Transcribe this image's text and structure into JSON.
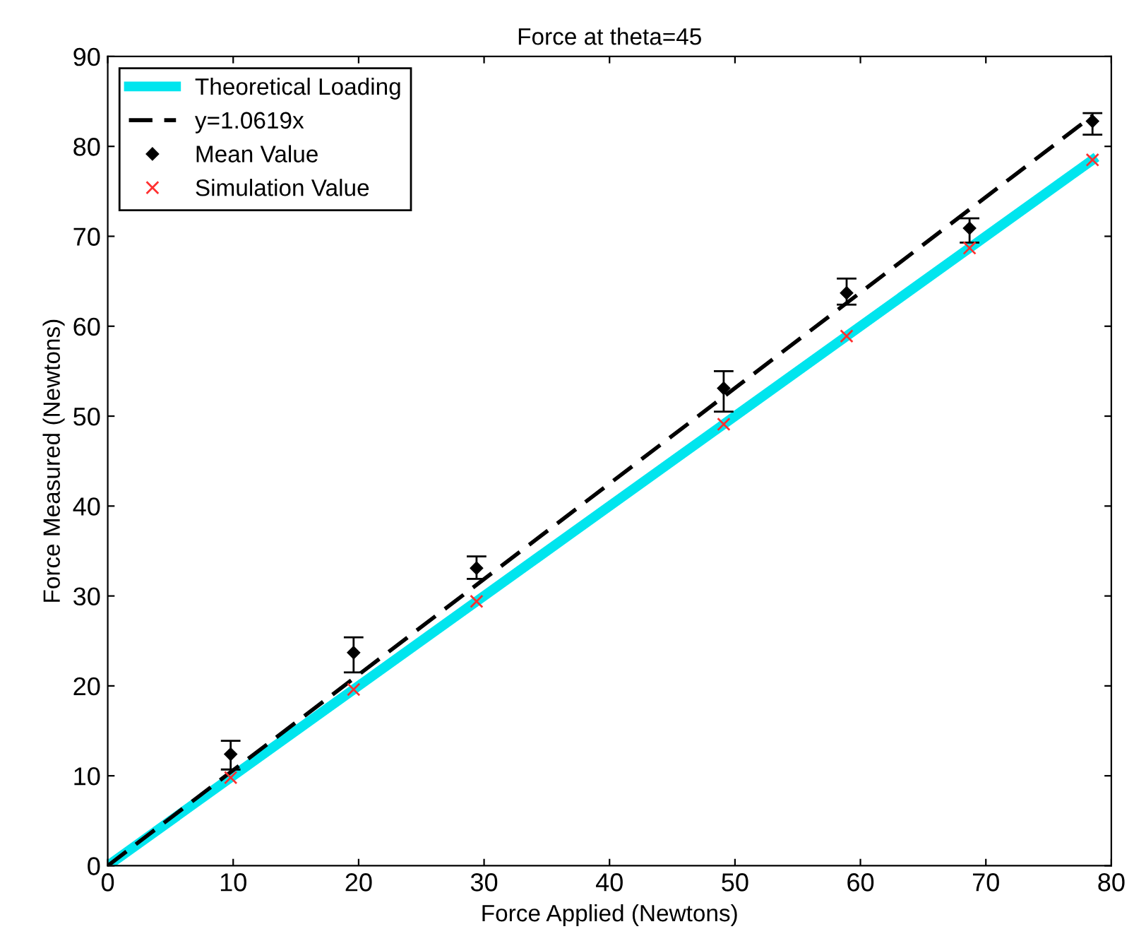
{
  "chart_data": {
    "type": "line",
    "title": "Force at theta=45",
    "xlabel": "Force Applied (Newtons)",
    "ylabel": "Force Measured (Newtons)",
    "xlim": [
      0,
      80
    ],
    "ylim": [
      0,
      90
    ],
    "xticks": [
      0,
      10,
      20,
      30,
      40,
      50,
      60,
      70,
      80
    ],
    "yticks": [
      0,
      10,
      20,
      30,
      40,
      50,
      60,
      70,
      80,
      90
    ],
    "grid": false,
    "legend": "top left",
    "series": [
      {
        "name": "Theoretical Loading",
        "color": "#00e5ee",
        "line_style": "solid",
        "marker": "none",
        "x": [
          0,
          78.5
        ],
        "values": [
          0,
          78.5
        ]
      },
      {
        "name": "y=1.0619x",
        "color": "#000000",
        "line_style": "dashed",
        "marker": "none",
        "x": [
          0,
          78.5
        ],
        "values": [
          0,
          83.4
        ]
      },
      {
        "name": "Mean Value",
        "type": "scatter",
        "color": "#000000",
        "marker": "diamond",
        "x": [
          9.8,
          19.6,
          29.4,
          49.1,
          58.9,
          68.7,
          78.5
        ],
        "values": [
          12.4,
          23.7,
          33.1,
          53.1,
          63.7,
          70.9,
          82.8
        ],
        "errors": [
          [
            10.7,
            13.9
          ],
          [
            21.5,
            25.4
          ],
          [
            31.9,
            34.4
          ],
          [
            50.5,
            55.0
          ],
          [
            62.4,
            65.3
          ],
          [
            69.3,
            72.0
          ],
          [
            81.3,
            83.7
          ]
        ]
      },
      {
        "name": "Simulation Value",
        "type": "scatter",
        "color": "#ff3030",
        "marker": "cross",
        "x": [
          9.8,
          19.6,
          29.4,
          49.1,
          58.9,
          68.7,
          78.5
        ],
        "values": [
          9.8,
          19.6,
          29.4,
          49.1,
          58.9,
          68.7,
          78.5
        ]
      }
    ]
  }
}
